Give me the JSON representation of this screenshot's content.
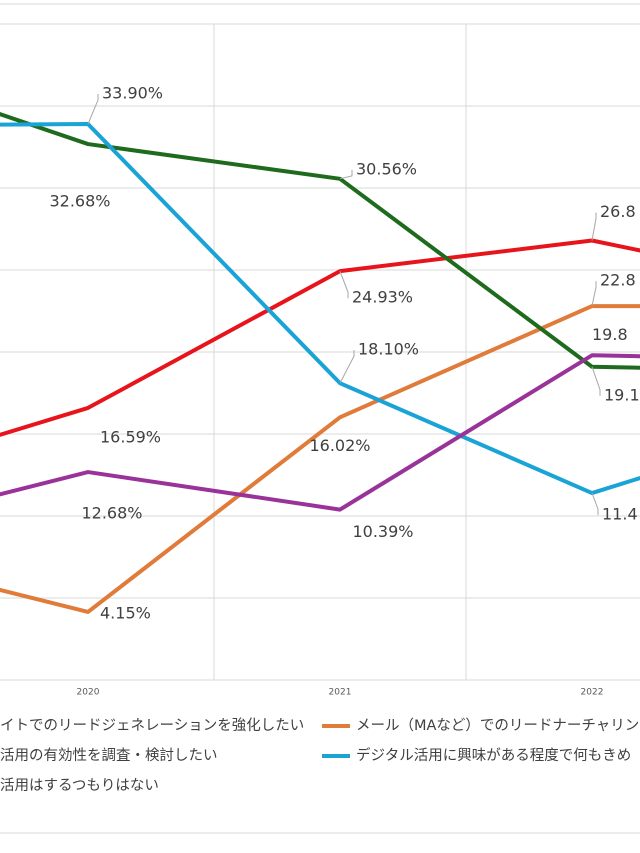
{
  "chart_data": {
    "type": "line",
    "categories": [
      null,
      "2020",
      "2021",
      "2022",
      null
    ],
    "series": [
      {
        "name": "イトでのリードジェネレーションを強化したい",
        "color": "#e8141c",
        "values": [
          11.9,
          16.59,
          24.93,
          26.8,
          23.6
        ],
        "value_labels": [
          null,
          "16.59%",
          "24.93%",
          "26.8",
          null
        ]
      },
      {
        "name": "メール（MAなど）でのリードナーチャリング",
        "color": "#e07b39",
        "values": [
          8.0,
          4.15,
          16.02,
          22.8,
          22.8
        ],
        "value_labels": [
          null,
          "4.15%",
          "16.02%",
          "22.8",
          null
        ]
      },
      {
        "name": "活用の有効性を調査・検討したい",
        "color": "#1e6b1e",
        "values": [
          37.9,
          32.68,
          30.56,
          19.1,
          18.8
        ],
        "value_labels": [
          null,
          "32.68%",
          "30.56%",
          "19.1",
          null
        ]
      },
      {
        "name": "デジタル活用に興味がある程度で何もきめ",
        "color": "#1aa3d6",
        "values": [
          33.8,
          33.9,
          18.1,
          11.4,
          16.2
        ],
        "value_labels": [
          null,
          "33.90%",
          "18.10%",
          "11.4",
          null
        ]
      },
      {
        "name": "活用はするつもりはない",
        "color": "#993399",
        "values": [
          8.8,
          12.68,
          10.39,
          19.8,
          19.5
        ],
        "value_labels": [
          null,
          "12.68%",
          "10.39%",
          "19.8",
          null
        ]
      }
    ],
    "ylim": [
      0,
      40
    ],
    "yticks": [
      0,
      5,
      10,
      15,
      20,
      25,
      30,
      35,
      40
    ],
    "grid": true
  }
}
